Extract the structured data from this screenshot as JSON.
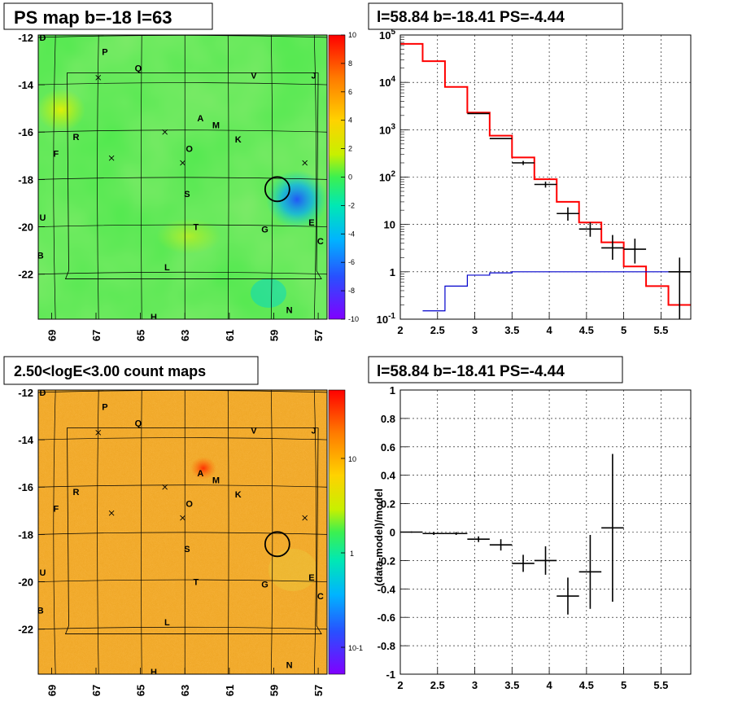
{
  "panels": {
    "tl_title": "PS map b=-18 l=63",
    "tr_title": "l=58.84 b=-18.41 PS=-4.44",
    "bl_title": "2.50<logE<3.00 count maps",
    "br_title": "l=58.84 b=-18.41 PS=-4.44"
  },
  "maps": {
    "x_ticks": [
      "69",
      "67",
      "65",
      "63",
      "61",
      "59",
      "57"
    ],
    "y_ticks": [
      "-12",
      "-14",
      "-16",
      "-18",
      "-20",
      "-22"
    ],
    "letters": [
      {
        "t": "D",
        "l": 69.4,
        "b": -12.0
      },
      {
        "t": "P",
        "l": 66.6,
        "b": -12.6
      },
      {
        "t": "Q",
        "l": 65.1,
        "b": -13.3
      },
      {
        "t": "V",
        "l": 59.9,
        "b": -13.6
      },
      {
        "t": "J",
        "l": 57.2,
        "b": -13.6
      },
      {
        "t": "A",
        "l": 62.3,
        "b": -15.4
      },
      {
        "t": "M",
        "l": 61.6,
        "b": -15.7
      },
      {
        "t": "R",
        "l": 67.9,
        "b": -16.2
      },
      {
        "t": "K",
        "l": 60.6,
        "b": -16.3
      },
      {
        "t": "F",
        "l": 68.8,
        "b": -16.9
      },
      {
        "t": "O",
        "l": 62.8,
        "b": -16.7
      },
      {
        "t": "S",
        "l": 62.9,
        "b": -18.6
      },
      {
        "t": "U",
        "l": 69.4,
        "b": -19.6
      },
      {
        "t": "T",
        "l": 62.5,
        "b": -20.0
      },
      {
        "t": "G",
        "l": 59.4,
        "b": -20.1
      },
      {
        "t": "E",
        "l": 57.3,
        "b": -19.8
      },
      {
        "t": "C",
        "l": 56.9,
        "b": -20.6
      },
      {
        "t": "B",
        "l": 69.5,
        "b": -21.2
      },
      {
        "t": "L",
        "l": 63.8,
        "b": -21.7
      },
      {
        "t": "H",
        "l": 64.4,
        "b": -23.8
      },
      {
        "t": "N",
        "l": 58.3,
        "b": -23.5
      }
    ],
    "crosses": [
      {
        "l": 66.9,
        "b": -13.7
      },
      {
        "l": 63.9,
        "b": -16.0
      },
      {
        "l": 66.3,
        "b": -17.1
      },
      {
        "l": 63.1,
        "b": -17.3
      },
      {
        "l": 57.6,
        "b": -17.3
      }
    ],
    "circle": {
      "l": 58.84,
      "b": -18.41
    },
    "ps_colorbar": {
      "min": -10,
      "max": 10,
      "ticks": [
        "10",
        "8",
        "6",
        "4",
        "2",
        "0",
        "-2",
        "-4",
        "-6",
        "-8",
        "-10"
      ]
    },
    "count_colorbar": {
      "ticks": [
        "10",
        "1",
        "10-1"
      ]
    }
  },
  "chart_data": [
    {
      "type": "step",
      "panel": "top-right spectrum",
      "xlim": [
        2,
        5.9
      ],
      "ylim": [
        0.1,
        100000
      ],
      "yscale": "log",
      "x_ticks": [
        "2",
        "2.5",
        "3",
        "3.5",
        "4",
        "4.5",
        "5",
        "5.5"
      ],
      "y_ticks": [
        "10^-1",
        "1",
        "10",
        "10^2",
        "10^3",
        "10^4",
        "10^5"
      ],
      "grid": true,
      "series": [
        {
          "color": "#ff0000",
          "edges": [
            2,
            2.3,
            2.6,
            2.9,
            3.2,
            3.5,
            3.8,
            4.1,
            4.4,
            4.7,
            5.0,
            5.3,
            5.6,
            5.9
          ],
          "values": [
            65000,
            28000,
            8000,
            2300,
            750,
            260,
            90,
            30,
            11,
            4.2,
            1.3,
            0.5,
            0.2
          ]
        },
        {
          "color": "#0000cc",
          "edges": [
            2.3,
            2.6,
            2.9,
            3.2,
            3.5,
            3.8,
            4.1,
            4.4,
            4.7,
            5.0,
            5.3,
            5.6,
            5.9
          ],
          "values": [
            0.15,
            0.5,
            0.85,
            0.95,
            1.0,
            1.0,
            1.0,
            1.0,
            1.0,
            1.0,
            1.0,
            1.0
          ]
        }
      ],
      "points": [
        {
          "x": 3.05,
          "y": 2200,
          "xerr": 0.15,
          "ylo": 2200,
          "yhi": 2200
        },
        {
          "x": 3.35,
          "y": 650,
          "xerr": 0.15,
          "ylo": 650,
          "yhi": 650
        },
        {
          "x": 3.65,
          "y": 200,
          "xerr": 0.15,
          "ylo": 180,
          "yhi": 220
        },
        {
          "x": 3.95,
          "y": 70,
          "xerr": 0.15,
          "ylo": 60,
          "yhi": 80
        },
        {
          "x": 4.25,
          "y": 17,
          "xerr": 0.15,
          "ylo": 12,
          "yhi": 23
        },
        {
          "x": 4.55,
          "y": 8,
          "xerr": 0.15,
          "ylo": 5.5,
          "yhi": 11
        },
        {
          "x": 4.85,
          "y": 3.2,
          "xerr": 0.15,
          "ylo": 1.8,
          "yhi": 6
        },
        {
          "x": 5.15,
          "y": 3.0,
          "xerr": 0.15,
          "ylo": 1.5,
          "yhi": 5
        },
        {
          "x": 5.75,
          "y": 1.0,
          "xerr": 0.15,
          "ylo": 0.1,
          "yhi": 2
        }
      ]
    },
    {
      "type": "scatter",
      "panel": "bottom-right residuals",
      "ylabel": "(data-model)/model",
      "xlim": [
        2,
        5.9
      ],
      "ylim": [
        -1,
        1
      ],
      "x_ticks": [
        "2",
        "2.5",
        "3",
        "3.5",
        "4",
        "4.5",
        "5",
        "5.5"
      ],
      "y_ticks": [
        "1",
        "0.8",
        "0.6",
        "0.4",
        "0.2",
        "0",
        "-0.2",
        "-0.4",
        "-0.6",
        "-0.8",
        "-1"
      ],
      "grid": true,
      "points": [
        {
          "x": 2.15,
          "y": 0.0,
          "xerr": 0.15,
          "yerr": 0.005
        },
        {
          "x": 2.45,
          "y": -0.01,
          "xerr": 0.15,
          "yerr": 0.01
        },
        {
          "x": 2.75,
          "y": -0.01,
          "xerr": 0.15,
          "yerr": 0.01
        },
        {
          "x": 3.05,
          "y": -0.05,
          "xerr": 0.15,
          "yerr": 0.02
        },
        {
          "x": 3.35,
          "y": -0.09,
          "xerr": 0.15,
          "yerr": 0.04
        },
        {
          "x": 3.65,
          "y": -0.22,
          "xerr": 0.15,
          "yerr": 0.06
        },
        {
          "x": 3.95,
          "y": -0.2,
          "xerr": 0.15,
          "yerr": 0.1
        },
        {
          "x": 4.25,
          "y": -0.45,
          "xerr": 0.15,
          "yerr": 0.13
        },
        {
          "x": 4.55,
          "y": -0.28,
          "xerr": 0.15,
          "yerr": 0.26
        },
        {
          "x": 4.85,
          "y": 0.03,
          "xerr": 0.15,
          "yerr": 0.52
        }
      ]
    }
  ]
}
